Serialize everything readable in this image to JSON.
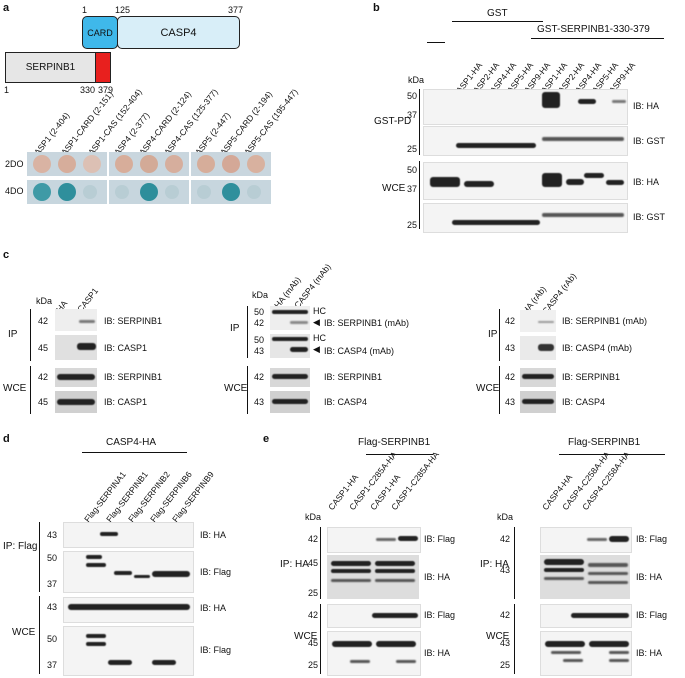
{
  "panel_a": {
    "letter": "a",
    "domain_numbers": {
      "n1": "1",
      "n125": "125",
      "n377": "377",
      "s1": "1",
      "n330": "330",
      "n379": "379"
    },
    "card_label": "CARD",
    "casp4_label": "CASP4",
    "serpinb1_label": "SERPINB1",
    "colors": {
      "card": "#3fb8ea",
      "casp4": "#d8eef8",
      "serpinb1": "#e6e6e6",
      "rcl": "#e8201e"
    },
    "constructs": [
      "CASP1 (2-404)",
      "CASP1-CARD (2-151)",
      "CASP1-CAS (152-404)",
      "CASP4 (2-377)",
      "CASP4-CARD (2-124)",
      "CASP4-CAS (125-377)",
      "CASP5 (2-447)",
      "CASP5-CARD (2-194)",
      "CASP5-CAS (195-447)"
    ],
    "rows": [
      "2DO",
      "4DO"
    ],
    "growth_4do": [
      true,
      true,
      false,
      false,
      true,
      false,
      false,
      true,
      false
    ]
  },
  "panel_b": {
    "letter": "b",
    "gst_header": "GST",
    "gst_fusion_header": "GST-SERPINB1-330-379",
    "lanes": [
      "CASP1-HA",
      "CASP2-HA",
      "CASP4-HA",
      "CASP5-HA",
      "CASP9-HA",
      "CASP1-HA",
      "CASP2-HA",
      "CASP4-HA",
      "CASP5-HA",
      "CASP9-HA"
    ],
    "kda": "kDa",
    "gst_pd": "GST-PD",
    "wce": "WCE",
    "blots": [
      {
        "markers": [
          "50",
          "37"
        ],
        "ib": "IB: HA"
      },
      {
        "markers": [
          "25"
        ],
        "ib": "IB: GST"
      },
      {
        "markers": [
          "50",
          "37"
        ],
        "ib": "IB: HA"
      },
      {
        "markers": [
          "25"
        ],
        "ib": "IB: GST"
      }
    ]
  },
  "panel_c": {
    "letter": "c",
    "left": {
      "lanes": [
        "HA",
        "CASP1"
      ],
      "kda": "kDa",
      "ip": "IP",
      "wce": "WCE",
      "blots": [
        {
          "marker": "42",
          "ib": "IB: SERPINB1"
        },
        {
          "marker": "45",
          "ib": "IB: CASP1"
        },
        {
          "marker": "42",
          "ib": "IB: SERPINB1"
        },
        {
          "marker": "45",
          "ib": "IB: CASP1"
        }
      ]
    },
    "middle": {
      "lanes": [
        "HA (mAb)",
        "CASP4 (mAb)"
      ],
      "kda": "kDa",
      "ip": "IP",
      "wce": "WCE",
      "hc": "HC",
      "blots": [
        {
          "markers": [
            "50",
            "42"
          ],
          "ib": "IB: SERPINB1 (mAb)"
        },
        {
          "markers": [
            "50",
            "43"
          ],
          "ib": "IB: CASP4 (mAb)"
        },
        {
          "markers": [
            "42"
          ],
          "ib": "IB: SERPINB1"
        },
        {
          "markers": [
            "43"
          ],
          "ib": "IB: CASP4"
        }
      ]
    },
    "right": {
      "lanes": [
        "HA (rAb)",
        "CASP4 (rAb)"
      ],
      "ip": "IP",
      "wce": "WCE",
      "blots": [
        {
          "marker": "42",
          "ib": "IB: SERPINB1 (mAb)"
        },
        {
          "marker": "43",
          "ib": "IB: CASP4 (mAb)"
        },
        {
          "marker": "42",
          "ib": "IB: SERPINB1"
        },
        {
          "marker": "43",
          "ib": "IB: CASP4"
        }
      ]
    }
  },
  "panel_d": {
    "letter": "d",
    "header": "CASP4-HA",
    "lanes": [
      "Flag-SERPINA1",
      "Flag-SERPINB1",
      "Flag-SERPINB2",
      "Flag-SERPINB6",
      "Flag-SERPINB9"
    ],
    "ip_flag": "IP: Flag",
    "wce": "WCE",
    "blots": [
      {
        "markers": [
          "43"
        ],
        "ib": "IB: HA"
      },
      {
        "markers": [
          "50",
          "37"
        ],
        "ib": "IB: Flag"
      },
      {
        "markers": [
          "43"
        ],
        "ib": "IB: HA"
      },
      {
        "markers": [
          "50",
          "37"
        ],
        "ib": "IB: Flag"
      }
    ]
  },
  "panel_e": {
    "letter": "e",
    "left": {
      "header": "Flag-SERPINB1",
      "lanes": [
        "CASP1-HA",
        "CASP1-C285A-HA",
        "CASP1-HA",
        "CASP1-C285A-HA"
      ],
      "kda": "kDa",
      "ip": "IP: HA",
      "wce": "WCE",
      "blots": [
        {
          "markers": [
            "42"
          ],
          "ib": "IB: Flag"
        },
        {
          "markers": [
            "45",
            "25"
          ],
          "ib": "IB: HA"
        },
        {
          "markers": [
            "42"
          ],
          "ib": "IB: Flag"
        },
        {
          "markers": [
            "45",
            "25"
          ],
          "ib": "IB: HA"
        }
      ]
    },
    "right": {
      "header": "Flag-SERPINB1",
      "lanes": [
        "CASP4-HA",
        "CASP4-C258A-HA",
        "CASP4-C258A-HA"
      ],
      "kda": "kDa",
      "ip": "IP: HA",
      "wce": "WCE",
      "blots": [
        {
          "markers": [
            "42"
          ],
          "ib": "IB: Flag"
        },
        {
          "markers": [
            "43"
          ],
          "ib": "IB: HA"
        },
        {
          "markers": [
            "42"
          ],
          "ib": "IB: Flag"
        },
        {
          "markers": [
            "43",
            "25"
          ],
          "ib": "IB: HA"
        }
      ]
    }
  }
}
